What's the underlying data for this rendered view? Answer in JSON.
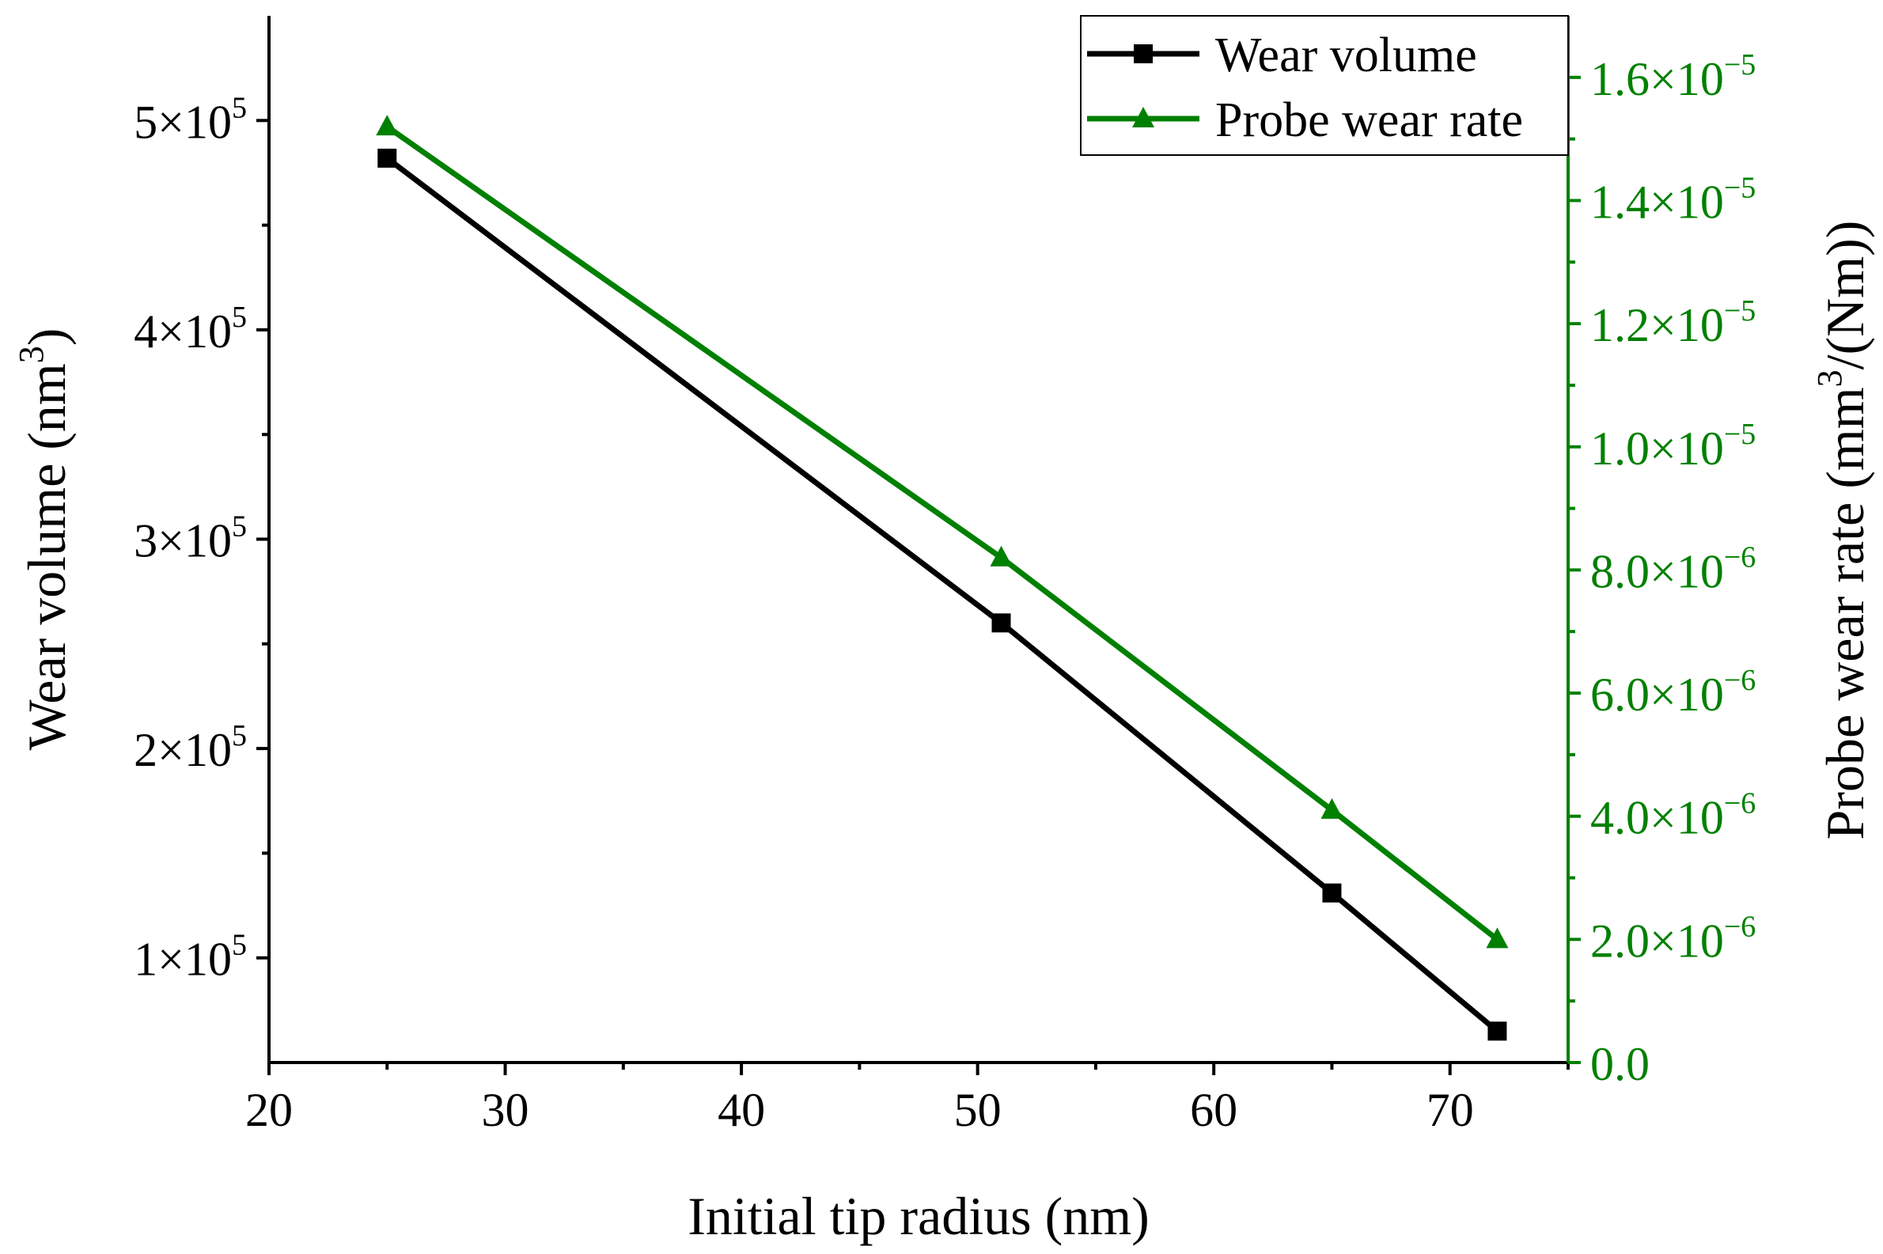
{
  "chart_data": {
    "type": "line",
    "title": "",
    "xlabel": "Initial tip radius (nm)",
    "ylabel_left": {
      "main": "Wear volume (nm",
      "sup": "3",
      "end": ")"
    },
    "ylabel_right": {
      "main": "Probe wear rate (mm",
      "sup": "3",
      "end": "/(Nm))"
    },
    "xlim": [
      20,
      75
    ],
    "ylim_left": [
      50000,
      550000
    ],
    "ylim_right": [
      0,
      1.7e-05
    ],
    "x_ticks": [
      {
        "value": 20,
        "label": "20"
      },
      {
        "value": 30,
        "label": "30"
      },
      {
        "value": 40,
        "label": "40"
      },
      {
        "value": 50,
        "label": "50"
      },
      {
        "value": 60,
        "label": "60"
      },
      {
        "value": 70,
        "label": "70"
      }
    ],
    "y_left_ticks": [
      {
        "value": 100000,
        "mant": "1",
        "exp": "5"
      },
      {
        "value": 200000,
        "mant": "2",
        "exp": "5"
      },
      {
        "value": 300000,
        "mant": "3",
        "exp": "5"
      },
      {
        "value": 400000,
        "mant": "4",
        "exp": "5"
      },
      {
        "value": 500000,
        "mant": "5",
        "exp": "5"
      }
    ],
    "y_right_ticks": [
      {
        "value": 0,
        "mant": "0.0",
        "exp": ""
      },
      {
        "value": 2e-06,
        "mant": "2.0",
        "exp": "−6"
      },
      {
        "value": 4e-06,
        "mant": "4.0",
        "exp": "−6"
      },
      {
        "value": 6e-06,
        "mant": "6.0",
        "exp": "−6"
      },
      {
        "value": 8e-06,
        "mant": "8.0",
        "exp": "−6"
      },
      {
        "value": 1e-05,
        "mant": "1.0",
        "exp": "−5"
      },
      {
        "value": 1.2e-05,
        "mant": "1.2",
        "exp": "−5"
      },
      {
        "value": 1.4e-05,
        "mant": "1.4",
        "exp": "−5"
      },
      {
        "value": 1.6e-05,
        "mant": "1.6",
        "exp": "−5"
      }
    ],
    "series": [
      {
        "name": "Wear volume",
        "axis": "left",
        "marker": "square",
        "color": "#000000",
        "x": [
          25,
          51,
          65,
          72
        ],
        "values": [
          482000,
          260000,
          131000,
          65000
        ]
      },
      {
        "name": "Probe wear rate",
        "axis": "right",
        "marker": "triangle",
        "color": "#008000",
        "x": [
          25,
          51,
          65,
          72
        ],
        "values": [
          1.52e-05,
          8.2e-06,
          4.1e-06,
          2e-06
        ]
      }
    ],
    "legend_position": "top-right",
    "right_axis_color": "#008000",
    "grid": false
  }
}
